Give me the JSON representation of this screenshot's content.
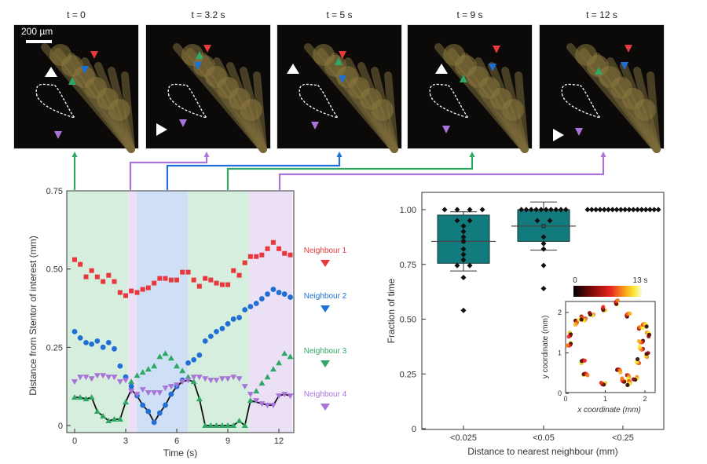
{
  "panels": [
    {
      "time_label": "t = 0",
      "scale_bar": "200 µm"
    },
    {
      "time_label": "t = 3.2 s"
    },
    {
      "time_label": "t = 5 s"
    },
    {
      "time_label": "t = 9 s"
    },
    {
      "time_label": "t = 12 s"
    }
  ],
  "colors": {
    "neighbour1": "#e8383d",
    "neighbour2": "#1f6fd6",
    "neighbour3": "#2fa866",
    "neighbour4": "#a874d8",
    "box_fill": "#127b7e",
    "shade_green": "#d6eedd",
    "shade_blue": "#cfe0f6",
    "shade_purple": "#ece0f6"
  },
  "chart_data": [
    {
      "type": "scatter",
      "title": "",
      "xlabel": "Time (s)",
      "ylabel": "Distance from Stentor of interest (mm)",
      "xlim": [
        -0.5,
        12.8
      ],
      "ylim": [
        0,
        0.75
      ],
      "xticks": [
        "0",
        "3",
        "6",
        "9",
        "12"
      ],
      "yticks": [
        "0",
        "0.25",
        "0.50",
        "0.75"
      ],
      "shaded_intervals": [
        {
          "from": -0.5,
          "to": 3.15,
          "neighbour": 3
        },
        {
          "from": 3.15,
          "to": 3.65,
          "neighbour": 4
        },
        {
          "from": 3.65,
          "to": 6.65,
          "neighbour": 2
        },
        {
          "from": 6.65,
          "to": 10.25,
          "neighbour": 3
        },
        {
          "from": 10.25,
          "to": 12.8,
          "neighbour": 4
        }
      ],
      "x": [
        0,
        0.33,
        0.67,
        1,
        1.33,
        1.67,
        2,
        2.33,
        2.67,
        3,
        3.33,
        3.67,
        4,
        4.33,
        4.67,
        5,
        5.33,
        5.67,
        6,
        6.33,
        6.67,
        7,
        7.33,
        7.67,
        8,
        8.33,
        8.67,
        9,
        9.33,
        9.67,
        10,
        10.33,
        10.67,
        11,
        11.33,
        11.67,
        12,
        12.33,
        12.67
      ],
      "series": [
        {
          "name": "Neighbour 1",
          "marker": "square",
          "values": [
            0.53,
            0.515,
            0.475,
            0.495,
            0.475,
            0.46,
            0.48,
            0.46,
            0.425,
            0.415,
            0.43,
            0.425,
            0.435,
            0.44,
            0.455,
            0.47,
            0.47,
            0.465,
            0.465,
            0.49,
            0.49,
            0.465,
            0.445,
            0.47,
            0.465,
            0.455,
            0.45,
            0.45,
            0.495,
            0.48,
            0.52,
            0.54,
            0.54,
            0.545,
            0.565,
            0.585,
            0.565,
            0.55,
            0.545
          ]
        },
        {
          "name": "Neighbour 2",
          "marker": "circle",
          "values": [
            0.3,
            0.28,
            0.265,
            0.26,
            0.27,
            0.25,
            0.265,
            0.245,
            0.19,
            0.155,
            0.125,
            0.095,
            0.065,
            0.045,
            0.01,
            0.04,
            0.065,
            0.1,
            0.125,
            0.145,
            0.2,
            0.21,
            0.225,
            0.27,
            0.285,
            0.3,
            0.31,
            0.325,
            0.34,
            0.345,
            0.37,
            0.38,
            0.39,
            0.405,
            0.42,
            0.435,
            0.425,
            0.42,
            0.41
          ]
        },
        {
          "name": "Neighbour 3",
          "marker": "triangle-up",
          "values": [
            0.09,
            0.09,
            0.085,
            0.09,
            0.045,
            0.03,
            0.015,
            0.02,
            0.02,
            0.075,
            0.14,
            0.16,
            0.17,
            0.18,
            0.19,
            0.22,
            0.23,
            0.215,
            0.19,
            0.175,
            0.155,
            0.14,
            0.085,
            0.0,
            0.0,
            0.0,
            0.0,
            0.0,
            0.0,
            0.015,
            0.0,
            0.08,
            0.11,
            0.135,
            0.155,
            0.18,
            0.2,
            0.23,
            0.22
          ]
        },
        {
          "name": "Neighbour 4",
          "marker": "triangle-down",
          "values": [
            0.14,
            0.155,
            0.155,
            0.15,
            0.16,
            0.16,
            0.155,
            0.155,
            0.14,
            0.145,
            0.11,
            0.1,
            0.115,
            0.105,
            0.105,
            0.105,
            0.12,
            0.125,
            0.13,
            0.14,
            0.145,
            0.155,
            0.155,
            0.15,
            0.145,
            0.145,
            0.15,
            0.15,
            0.155,
            0.15,
            0.125,
            0.1,
            0.08,
            0.07,
            0.065,
            0.065,
            0.095,
            0.1,
            0.095
          ]
        },
        {
          "name": "Nearest neighbour",
          "marker": "line",
          "values": [
            0.09,
            0.09,
            0.085,
            0.09,
            0.045,
            0.03,
            0.015,
            0.02,
            0.02,
            0.075,
            0.115,
            0.095,
            0.065,
            0.045,
            0.01,
            0.04,
            0.065,
            0.1,
            0.125,
            0.14,
            0.145,
            0.14,
            0.085,
            0.0,
            0.0,
            0.0,
            0.0,
            0.0,
            0.0,
            0.015,
            0.0,
            0.08,
            0.075,
            0.07,
            0.065,
            0.065,
            0.095,
            0.1,
            0.095
          ]
        }
      ],
      "legend": [
        "Neighbour 1",
        "Neighbour 2",
        "Neighbour 3",
        "Neighbour 4"
      ],
      "legend_placement": "right"
    },
    {
      "type": "box",
      "title": "",
      "xlabel": "Distance to nearest neighbour (mm)",
      "ylabel": "Fraction of time",
      "ylim": [
        0,
        1.08
      ],
      "yticks": [
        "0",
        "0.25",
        "0.50",
        "0.75",
        "1.00"
      ],
      "categories": [
        "<0.025",
        "<0.05",
        "<0.25"
      ],
      "boxes": [
        {
          "q1": 0.755,
          "median": 0.855,
          "mean": 0.855,
          "q3": 0.975,
          "whisker_low": 0.72,
          "whisker_high": 0.99,
          "points": [
            1.0,
            1.0,
            1.0,
            1.0,
            0.95,
            0.95,
            0.925,
            0.9,
            0.875,
            0.855,
            0.82,
            0.795,
            0.77,
            0.745,
            0.745,
            0.69,
            0.54
          ]
        },
        {
          "q1": 0.855,
          "median": 0.925,
          "mean": 0.925,
          "q3": 1.0,
          "whisker_low": 0.815,
          "whisker_high": 1.035,
          "points": [
            1.0,
            1.0,
            1.0,
            1.0,
            1.0,
            1.0,
            1.0,
            1.0,
            1.0,
            1.0,
            0.95,
            0.95,
            0.875,
            0.845,
            0.82,
            0.745,
            0.64
          ]
        },
        {
          "q1": 1.0,
          "median": 1.0,
          "mean": 1.0,
          "q3": 1.0,
          "whisker_low": 1.0,
          "whisker_high": 1.0,
          "points": [
            1.0,
            1.0,
            1.0,
            1.0,
            1.0,
            1.0,
            1.0,
            1.0,
            1.0,
            1.0,
            1.0,
            1.0,
            1.0,
            1.0,
            1.0,
            1.0,
            1.0,
            1.0
          ]
        }
      ]
    },
    {
      "type": "scatter",
      "title": "inset trajectories",
      "xlabel": "x coordinate (mm)",
      "ylabel": "y coordinate (mm)",
      "xlim": [
        0,
        2.25
      ],
      "ylim": [
        0,
        2.25
      ],
      "xticks": [
        "0",
        "1",
        "2"
      ],
      "yticks": [
        "0",
        "1",
        "2"
      ],
      "colorbar": {
        "min_label": "0",
        "max_label": "13 s",
        "colormap": "hot"
      },
      "clusters": [
        [
          0.25,
          1.8
        ],
        [
          0.4,
          1.9
        ],
        [
          0.5,
          1.85
        ],
        [
          0.7,
          1.95
        ],
        [
          1.0,
          2.05
        ],
        [
          1.3,
          2.2
        ],
        [
          1.55,
          1.9
        ],
        [
          1.85,
          1.6
        ],
        [
          1.95,
          1.7
        ],
        [
          2.05,
          1.5
        ],
        [
          0.1,
          1.5
        ],
        [
          0.12,
          1.25
        ],
        [
          1.95,
          1.3
        ],
        [
          1.95,
          1.1
        ],
        [
          1.85,
          0.75
        ],
        [
          2.05,
          0.9
        ],
        [
          0.4,
          0.75
        ],
        [
          0.45,
          0.45
        ],
        [
          1.3,
          0.58
        ],
        [
          1.55,
          0.45
        ],
        [
          1.6,
          0.3
        ],
        [
          1.8,
          0.4
        ],
        [
          1.0,
          0.25
        ],
        [
          1.5,
          0.3
        ]
      ]
    }
  ],
  "left_legend": [
    {
      "label": "Neighbour 1"
    },
    {
      "label": "Neighbour 2"
    },
    {
      "label": "Neighbour 3"
    },
    {
      "label": "Neighbour 4"
    }
  ]
}
